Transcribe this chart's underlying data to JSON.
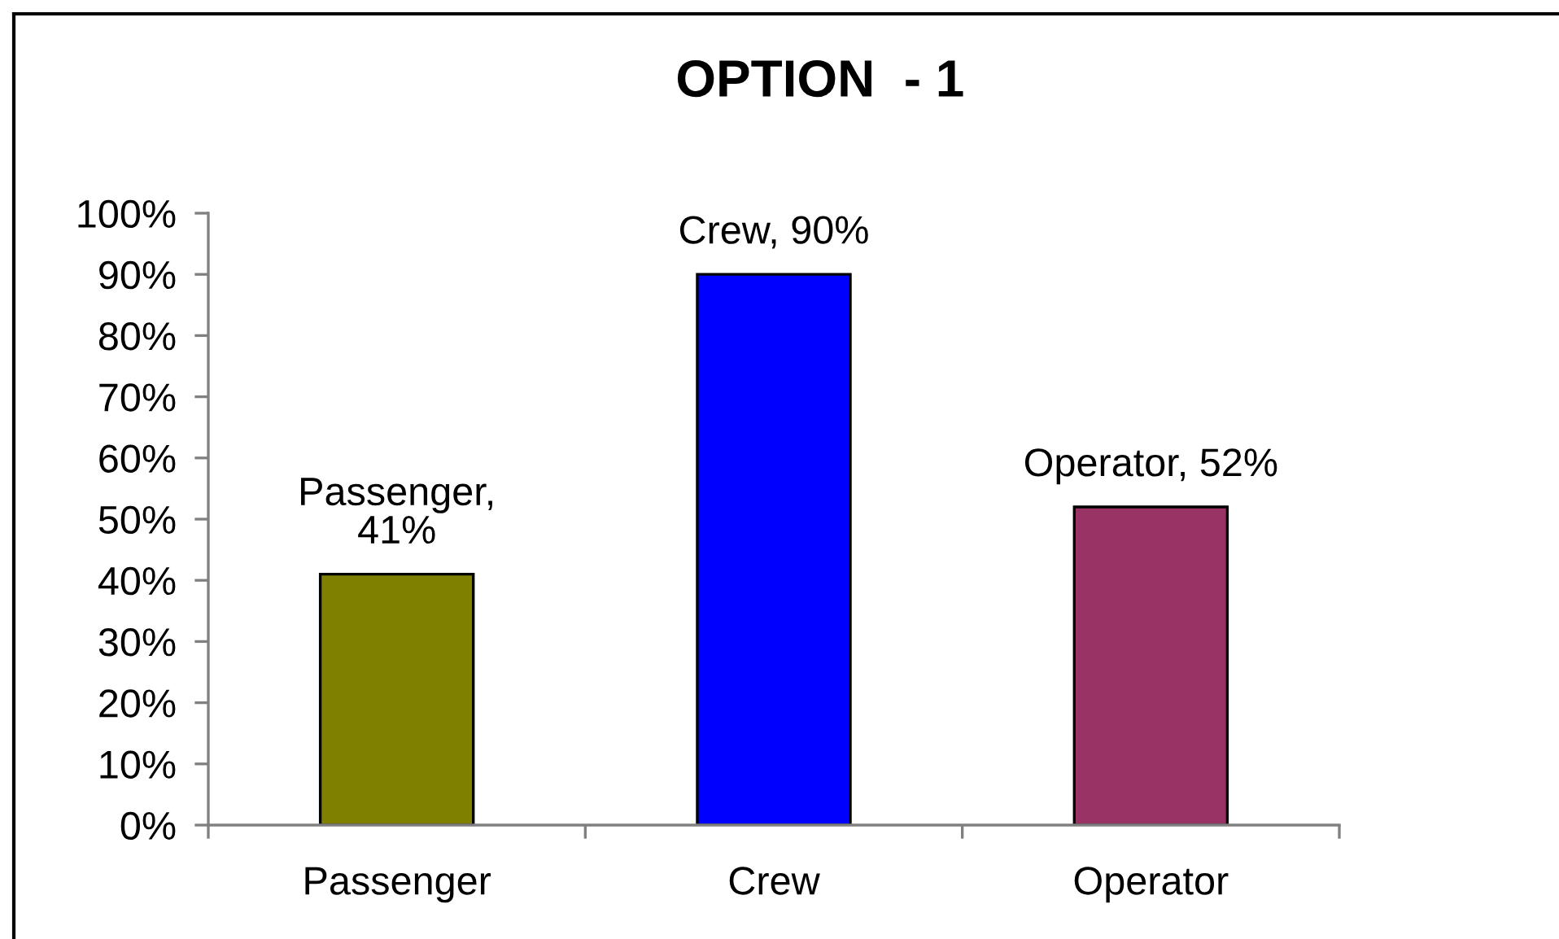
{
  "chart_data": {
    "type": "bar",
    "title": "OPTION  - 1",
    "categories": [
      "Passenger",
      "Crew",
      "Operator"
    ],
    "values": [
      41,
      90,
      52
    ],
    "colors": [
      "#808000",
      "#0000ff",
      "#993366"
    ],
    "value_labels": [
      "Passenger,\n41%",
      "Crew, 90%",
      "Operator, 52%"
    ],
    "ylim": [
      0,
      100
    ],
    "yticks": [
      {
        "value": 0,
        "label": "0%"
      },
      {
        "value": 10,
        "label": "10%"
      },
      {
        "value": 20,
        "label": "20%"
      },
      {
        "value": 30,
        "label": "30%"
      },
      {
        "value": 40,
        "label": "40%"
      },
      {
        "value": 50,
        "label": "50%"
      },
      {
        "value": 60,
        "label": "60%"
      },
      {
        "value": 70,
        "label": "70%"
      },
      {
        "value": 80,
        "label": "80%"
      },
      {
        "value": 90,
        "label": "90%"
      },
      {
        "value": 100,
        "label": "100%"
      }
    ],
    "grid": false
  }
}
